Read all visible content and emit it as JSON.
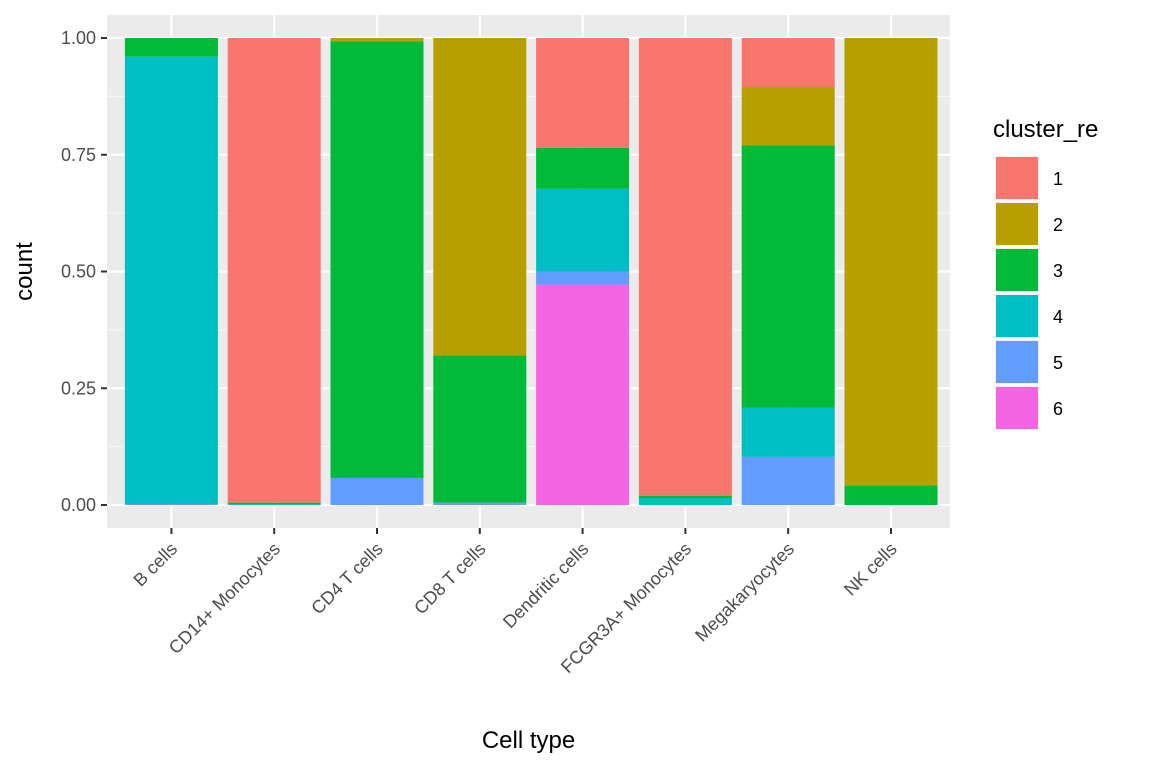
{
  "chart_data": {
    "type": "bar",
    "stacked": true,
    "position": "fill",
    "xlabel": "Cell type",
    "ylabel": "count",
    "ylim": [
      0,
      1
    ],
    "y_ticks": [
      0,
      0.25,
      0.5,
      0.75,
      1
    ],
    "y_tick_labels": [
      "0.00",
      "0.25",
      "0.50",
      "0.75",
      "1.00"
    ],
    "grid": true,
    "legend_position": "right",
    "legend_title": "cluster_re",
    "categories": [
      "B cells",
      "CD14+ Monocytes",
      "CD4 T cells",
      "CD8 T cells",
      "Dendritic cells",
      "FCGR3A+ Monocytes",
      "Megakaryocytes",
      "NK cells"
    ],
    "series": [
      {
        "name": "1",
        "color": "#F8766D",
        "values": [
          0,
          0.995,
          0,
          0,
          0.235,
          0.98,
          0.105,
          0
        ]
      },
      {
        "name": "2",
        "color": "#B79F00",
        "values": [
          0,
          0,
          0.007,
          0.68,
          0,
          0,
          0.125,
          0.958
        ]
      },
      {
        "name": "3",
        "color": "#00BA38",
        "values": [
          0.04,
          0.003,
          0.935,
          0.315,
          0.088,
          0.005,
          0.562,
          0.042
        ]
      },
      {
        "name": "4",
        "color": "#00BFC4",
        "values": [
          0.958,
          0.002,
          0,
          0,
          0.177,
          0.015,
          0.105,
          0
        ]
      },
      {
        "name": "5",
        "color": "#619CFF",
        "values": [
          0.002,
          0,
          0.058,
          0.005,
          0.028,
          0,
          0.103,
          0
        ]
      },
      {
        "name": "6",
        "color": "#F564E3",
        "values": [
          0,
          0,
          0,
          0,
          0.472,
          0,
          0,
          0
        ]
      }
    ]
  }
}
